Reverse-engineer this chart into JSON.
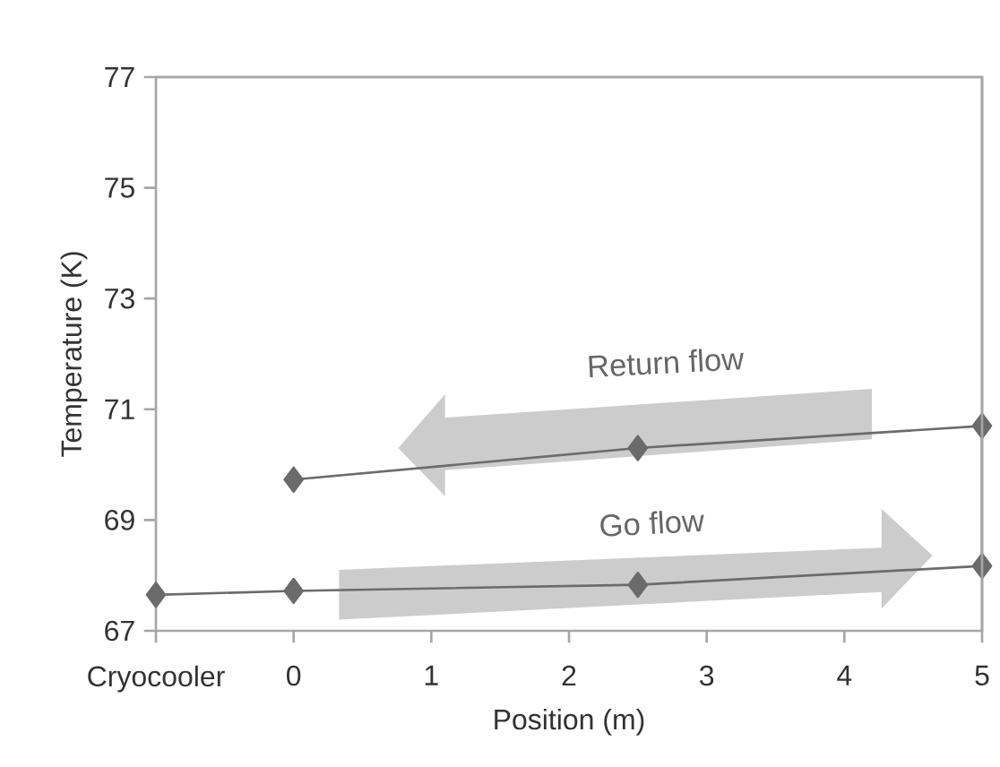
{
  "chart_data": {
    "type": "line",
    "xlabel": "Position  (m)",
    "ylabel": "Temperature  (K)",
    "series": [
      {
        "color": "#6b6b6b",
        "x": [
          -1,
          0,
          2.5,
          5,
          5,
          2.5,
          0
        ],
        "values": [
          67.65,
          67.72,
          67.83,
          68.17,
          70.7,
          70.3,
          69.73
        ]
      }
    ],
    "xlim": [
      -1,
      5
    ],
    "xticks": [
      {
        "value": -1,
        "label": "Cryocooler"
      },
      0,
      1,
      2,
      3,
      4,
      5
    ],
    "ylim": [
      67,
      77
    ],
    "yticks": [
      67,
      69,
      71,
      73,
      75,
      77
    ],
    "annotations": [
      "Return flow",
      "Go flow"
    ],
    "marker": "diamond",
    "line_style": "solid"
  }
}
